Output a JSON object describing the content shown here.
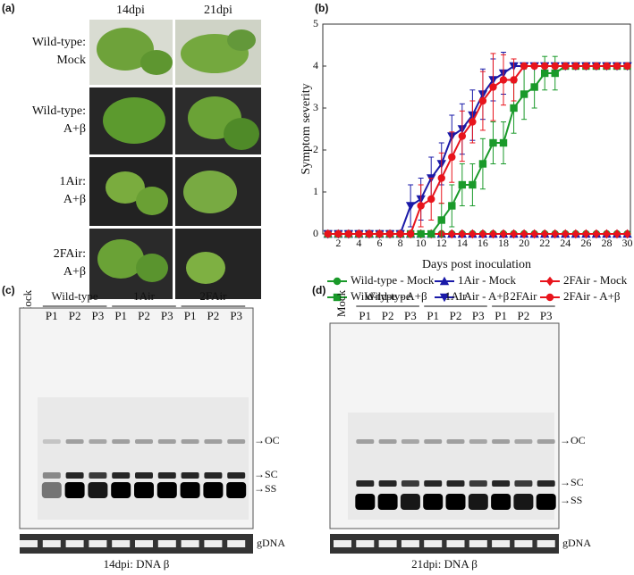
{
  "panel_a": {
    "label": "(a)",
    "columns": [
      "14dpi",
      "21dpi"
    ],
    "rows": [
      [
        "Wild-type:",
        "Mock"
      ],
      [
        "Wild-type:",
        "A+β"
      ],
      [
        "1Air:",
        "A+β"
      ],
      [
        "2FAir:",
        "A+β"
      ]
    ]
  },
  "chart_data": {
    "type": "line",
    "panel_label": "(b)",
    "x_label": "Days post inoculation",
    "y_label": "Symptom severity",
    "x": [
      1,
      2,
      3,
      4,
      5,
      6,
      7,
      8,
      9,
      10,
      11,
      12,
      13,
      14,
      15,
      16,
      17,
      18,
      19,
      20,
      21,
      22,
      23,
      24,
      25,
      26,
      27,
      28,
      29,
      30
    ],
    "xlim": [
      0.5,
      30.3
    ],
    "xticks": [
      2,
      4,
      6,
      8,
      10,
      12,
      14,
      16,
      18,
      20,
      22,
      24,
      26,
      28,
      30
    ],
    "ylim": [
      0,
      5
    ],
    "yticks": [
      0,
      1,
      2,
      3,
      4,
      5
    ],
    "series": [
      {
        "name": "Wild-type - Mock",
        "color": "#1a9a2a",
        "marker": "circle",
        "values": [
          0,
          0,
          0,
          0,
          0,
          0,
          0,
          0,
          0,
          0,
          0,
          0,
          0,
          0,
          0,
          0,
          0,
          0,
          0,
          0,
          0,
          0,
          0,
          0,
          0,
          0,
          0,
          0,
          0,
          0
        ]
      },
      {
        "name": "1Air - Mock",
        "color": "#1a1aa8",
        "marker": "triangle-up",
        "values": [
          0,
          0,
          0,
          0,
          0,
          0,
          0,
          0,
          0,
          0,
          0,
          0,
          0,
          0,
          0,
          0,
          0,
          0,
          0,
          0,
          0,
          0,
          0,
          0,
          0,
          0,
          0,
          0,
          0,
          0
        ]
      },
      {
        "name": "2FAir - Mock",
        "color": "#e8141c",
        "marker": "diamond",
        "values": [
          0,
          0,
          0,
          0,
          0,
          0,
          0,
          0,
          0,
          0,
          0,
          0,
          0,
          0,
          0,
          0,
          0,
          0,
          0,
          0,
          0,
          0,
          0,
          0,
          0,
          0,
          0,
          0,
          0,
          0
        ]
      },
      {
        "name": "Wild-type - A+β",
        "color": "#1a9a2a",
        "marker": "square",
        "values": [
          0,
          0,
          0,
          0,
          0,
          0,
          0,
          0,
          0,
          0,
          0,
          0.33,
          0.67,
          1.17,
          1.17,
          1.67,
          2.17,
          2.17,
          3,
          3.33,
          3.5,
          3.83,
          3.83,
          4,
          4,
          4,
          4,
          4,
          4,
          4
        ],
        "errors": [
          0,
          0,
          0,
          0,
          0,
          0,
          0,
          0,
          0,
          0,
          0,
          0.4,
          0.5,
          0.5,
          0.5,
          0.6,
          0.5,
          0.5,
          0.6,
          0.6,
          0.5,
          0.4,
          0.4,
          0,
          0,
          0,
          0,
          0,
          0,
          0
        ]
      },
      {
        "name": "1Air - A+β",
        "color": "#1a1aa8",
        "marker": "triangle-down",
        "values": [
          0,
          0,
          0,
          0,
          0,
          0,
          0,
          0,
          0.67,
          0.83,
          1.33,
          1.67,
          2.33,
          2.5,
          2.83,
          3.33,
          3.67,
          3.83,
          4,
          4,
          4,
          4,
          4,
          4,
          4,
          4,
          4,
          4,
          4,
          4
        ],
        "errors": [
          0,
          0,
          0,
          0,
          0,
          0,
          0,
          0,
          0.5,
          0.5,
          0.5,
          0.5,
          0.5,
          0.6,
          0.6,
          0.6,
          0.5,
          0.5,
          0,
          0,
          0,
          0,
          0,
          0,
          0,
          0,
          0,
          0,
          0,
          0
        ]
      },
      {
        "name": "2FAir - A+β",
        "color": "#e8141c",
        "marker": "circle",
        "values": [
          0,
          0,
          0,
          0,
          0,
          0,
          0,
          0,
          0,
          0.67,
          0.83,
          1.33,
          1.83,
          2.33,
          2.67,
          3.17,
          3.5,
          3.67,
          3.67,
          4,
          4,
          4,
          4,
          4,
          4,
          4,
          4,
          4,
          4,
          4
        ],
        "errors": [
          0,
          0,
          0,
          0,
          0,
          0,
          0,
          0,
          0,
          0.5,
          0.5,
          0.6,
          0.6,
          0.6,
          0.5,
          0.7,
          0.8,
          0.6,
          0.5,
          0,
          0,
          0,
          0,
          0,
          0,
          0,
          0,
          0,
          0,
          0
        ]
      }
    ]
  },
  "panel_c": {
    "label": "(c)",
    "mock": "Mock",
    "groups": [
      {
        "name": "Wild-type",
        "lanes": [
          "P1",
          "P2",
          "P3"
        ]
      },
      {
        "name": "1Air",
        "lanes": [
          "P1",
          "P2",
          "P3"
        ]
      },
      {
        "name": "2FAir",
        "lanes": [
          "P1",
          "P2",
          "P3"
        ]
      }
    ],
    "markers": [
      "→OC",
      "→SC",
      "→SS"
    ],
    "loading": "gDNA",
    "caption": "14dpi: DNA β"
  },
  "panel_d": {
    "label": "(d)",
    "mock": "Mock",
    "groups": [
      {
        "name": "Wild-type",
        "lanes": [
          "P1",
          "P2",
          "P3"
        ]
      },
      {
        "name": "1Air",
        "lanes": [
          "P1",
          "P2",
          "P3"
        ]
      },
      {
        "name": "2FAir",
        "lanes": [
          "P1",
          "P2",
          "P3"
        ]
      }
    ],
    "markers": [
      "→OC",
      "→SC",
      "→SS"
    ],
    "loading": "gDNA",
    "caption": "21dpi: DNA β"
  }
}
